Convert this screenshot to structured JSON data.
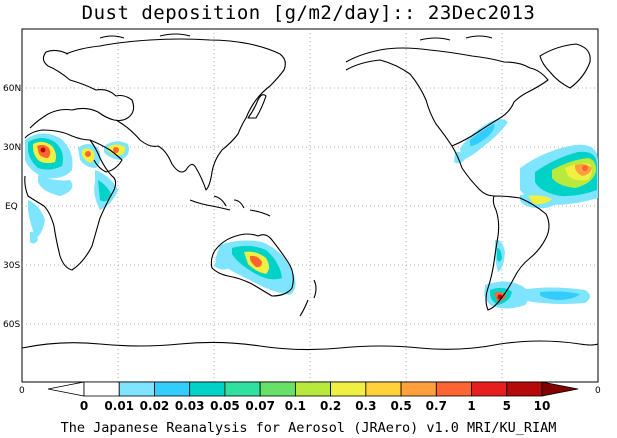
{
  "title": "Dust deposition [g/m2/day]:: 23Dec2013",
  "credit": "The Japanese Reanalysis for Aerosol (JRAero) v1.0 MRI/KU_RIAM",
  "latitude_labels": [
    "60N",
    "30N",
    "EQ",
    "30S",
    "60S"
  ],
  "longitude_labels": [
    "0",
    "0"
  ],
  "colorbar": {
    "labels": [
      "0",
      "0.01",
      "0.02",
      "0.03",
      "0.05",
      "0.07",
      "0.1",
      "0.2",
      "0.3",
      "0.5",
      "0.7",
      "1",
      "5",
      "10"
    ],
    "colors": [
      "#ffffff",
      "#ffffff",
      "#7fe5ff",
      "#33ccff",
      "#00d2c8",
      "#30e0a0",
      "#66e066",
      "#b8ea3e",
      "#f0f042",
      "#ffd23c",
      "#ffa03c",
      "#ff6432",
      "#e61e1e",
      "#b40a0a",
      "#820000"
    ]
  }
}
